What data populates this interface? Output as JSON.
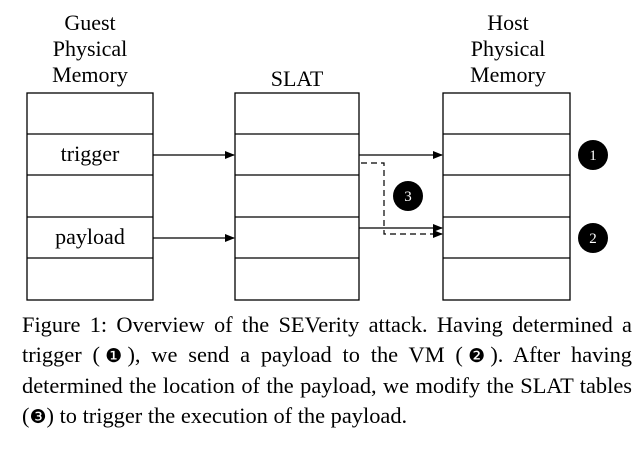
{
  "columns": {
    "guest": {
      "title_lines": [
        "Guest",
        "Physical",
        "Memory"
      ],
      "cells": [
        "",
        "trigger",
        "",
        "payload",
        ""
      ]
    },
    "slat": {
      "title_lines": [
        "SLAT"
      ]
    },
    "host": {
      "title_lines": [
        "Host",
        "Physical",
        "Memory"
      ]
    }
  },
  "markers": {
    "host_trigger": "1",
    "host_payload": "2",
    "remap": "3"
  },
  "caption": {
    "figure_label": "Figure 1:",
    "part1": " Overview of the SEVerity attack. Having determined a trigger (",
    "ref1": "❶",
    "part2": "), we send a payload to the VM (",
    "ref2": "❷",
    "part3": "). After having determined the location of the payload, we modify the SLAT tables (",
    "ref3": "❸",
    "part4": ") to trigger the execution of the payload."
  },
  "colors": {
    "line": "#000000",
    "marker_fill": "#000000",
    "marker_text": "#ffffff",
    "background": "#ffffff"
  }
}
